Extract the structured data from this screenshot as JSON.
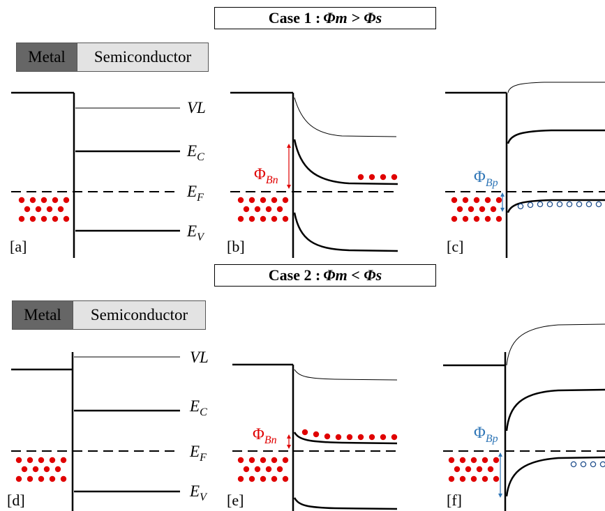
{
  "cases": [
    {
      "label": "Case 1 : ",
      "formula": "Φm > Φs"
    },
    {
      "label": "Case 2 : ",
      "formula": "Φm < Φs"
    }
  ],
  "legend": {
    "metal": "Metal",
    "semiconductor": "Semiconductor"
  },
  "band_labels": {
    "vl": "VL",
    "ec": "E",
    "ec_sub": "C",
    "ef": "E",
    "ef_sub": "F",
    "ev": "E",
    "ev_sub": "V"
  },
  "barriers": {
    "n": "Φ",
    "n_sub": "Bn",
    "p": "Φ",
    "p_sub": "Bp"
  },
  "panels": [
    "[a]",
    "[b]",
    "[c]",
    "[d]",
    "[e]",
    "[f]"
  ],
  "colors": {
    "electron": "#e00000",
    "hole": "#1f4e8c",
    "n_barrier": "#e00000",
    "p_barrier": "#2e75b6",
    "metal": "#666666",
    "semiconductor": "#e3e3e3"
  }
}
